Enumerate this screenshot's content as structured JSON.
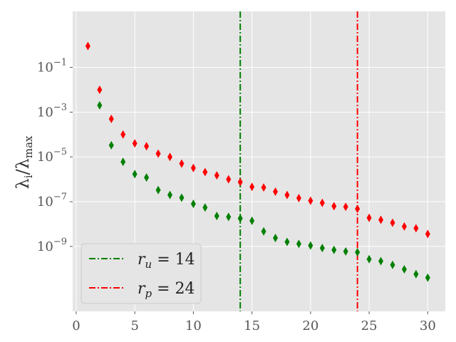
{
  "chart_data": {
    "type": "scatter",
    "title": "",
    "xlabel": "",
    "ylabel": "λᵢ/λₘₐₓ",
    "ylabel_parts": {
      "lambda": "λ",
      "sub_i": "i",
      "slash": "/",
      "sub_max": "max"
    },
    "xlim": [
      -0.3,
      31.5
    ],
    "ylim_log10": [
      -11.9,
      1.5
    ],
    "yscale": "log",
    "x_ticks": [
      0,
      5,
      10,
      15,
      20,
      25,
      30
    ],
    "x_tick_labels": [
      "0",
      "5",
      "10",
      "15",
      "20",
      "25",
      "30"
    ],
    "y_ticks_exp": [
      -1,
      -3,
      -5,
      -7,
      -9
    ],
    "y_tick_labels": [
      {
        "base": "10",
        "exp": "−1"
      },
      {
        "base": "10",
        "exp": "−3"
      },
      {
        "base": "10",
        "exp": "−5"
      },
      {
        "base": "10",
        "exp": "−7"
      },
      {
        "base": "10",
        "exp": "−9"
      }
    ],
    "grid": true,
    "background": "#e5e5e5",
    "legend_placement": "lower-left",
    "marker": "thin-diamond",
    "series": [
      {
        "color": "#008000",
        "x": [
          2,
          3,
          4,
          5,
          6,
          7,
          8,
          9,
          10,
          11,
          12,
          13,
          14,
          15,
          16,
          17,
          18,
          19,
          20,
          21,
          22,
          23,
          24,
          25,
          26,
          27,
          28,
          29,
          30
        ],
        "y": [
          0.002,
          3.3e-05,
          6e-06,
          1.7e-06,
          1.2e-06,
          3.3e-07,
          2e-07,
          1.5e-07,
          8e-08,
          5.5e-08,
          2.3e-08,
          2.1e-08,
          1.8e-08,
          1.4e-08,
          4.7e-09,
          2.4e-09,
          1.6e-09,
          1.3e-09,
          1.1e-09,
          8.5e-10,
          7e-10,
          6e-10,
          5.5e-10,
          2.7e-10,
          2.2e-10,
          1.5e-10,
          9.5e-11,
          5.8e-11,
          4e-11
        ]
      },
      {
        "color": "#ff0000",
        "x": [
          1,
          2,
          3,
          4,
          5,
          6,
          7,
          8,
          9,
          10,
          11,
          12,
          13,
          14,
          15,
          16,
          17,
          18,
          19,
          20,
          21,
          22,
          23,
          24,
          25,
          26,
          27,
          28,
          29,
          30
        ],
        "y": [
          0.9,
          0.01,
          0.0005,
          0.0001,
          4e-05,
          3e-05,
          1.4e-05,
          1e-05,
          5e-06,
          3.2e-06,
          2.1e-06,
          1.5e-06,
          1e-06,
          7.5e-07,
          4.6e-07,
          4.3e-07,
          2.8e-07,
          2e-07,
          1.45e-07,
          1.1e-07,
          8.8e-08,
          6.3e-08,
          5.9e-08,
          4.8e-08,
          1.9e-08,
          1.55e-08,
          1.15e-08,
          7.8e-09,
          6.5e-09,
          3.6e-09
        ]
      }
    ],
    "vlines": [
      {
        "x": 14,
        "color": "#008000",
        "style": "dashdot",
        "label": {
          "sym": "r",
          "sub": "u",
          "value": " = 14"
        }
      },
      {
        "x": 24,
        "color": "#ff0000",
        "style": "dashdot",
        "label": {
          "sym": "r",
          "sub": "p",
          "value": " = 24"
        }
      }
    ]
  }
}
